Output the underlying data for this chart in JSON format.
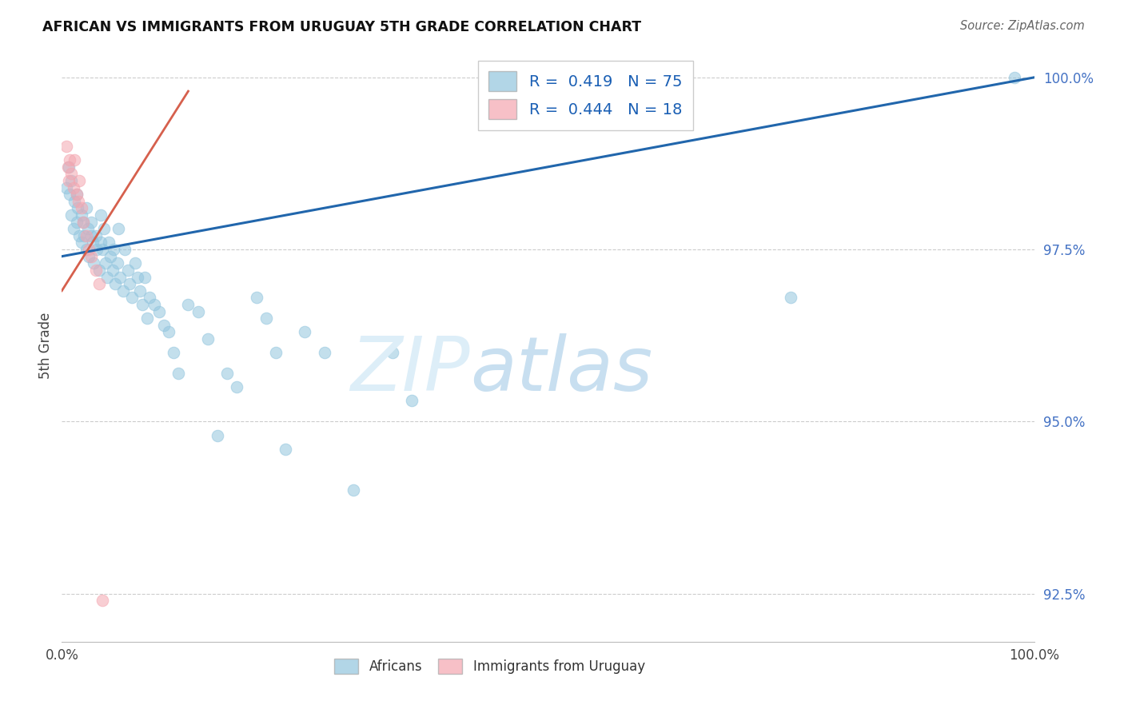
{
  "title": "AFRICAN VS IMMIGRANTS FROM URUGUAY 5TH GRADE CORRELATION CHART",
  "source": "Source: ZipAtlas.com",
  "ylabel": "5th Grade",
  "blue_color": "#92c5de",
  "pink_color": "#f4a6b0",
  "line_blue": "#2166ac",
  "line_pink": "#d6604d",
  "xlim": [
    0.0,
    1.0
  ],
  "ylim": [
    0.918,
    1.004
  ],
  "right_ytick_labels": [
    "92.5%",
    "95.0%",
    "97.5%",
    "100.0%"
  ],
  "right_ytick_positions": [
    0.925,
    0.95,
    0.975,
    1.0
  ],
  "legend_R_blue": "0.419",
  "legend_N_blue": "75",
  "legend_R_pink": "0.444",
  "legend_N_pink": "18",
  "blue_line_x0": 0.0,
  "blue_line_y0": 0.974,
  "blue_line_x1": 1.0,
  "blue_line_y1": 1.0,
  "pink_line_x0": 0.0,
  "pink_line_y0": 0.969,
  "pink_line_x1": 0.13,
  "pink_line_y1": 0.998,
  "africans_x": [
    0.005,
    0.007,
    0.008,
    0.01,
    0.01,
    0.012,
    0.013,
    0.015,
    0.015,
    0.016,
    0.018,
    0.02,
    0.02,
    0.022,
    0.023,
    0.025,
    0.025,
    0.027,
    0.028,
    0.03,
    0.03,
    0.032,
    0.033,
    0.035,
    0.036,
    0.038,
    0.04,
    0.04,
    0.042,
    0.043,
    0.045,
    0.047,
    0.048,
    0.05,
    0.052,
    0.053,
    0.055,
    0.057,
    0.058,
    0.06,
    0.063,
    0.065,
    0.068,
    0.07,
    0.072,
    0.075,
    0.078,
    0.08,
    0.083,
    0.085,
    0.088,
    0.09,
    0.095,
    0.1,
    0.105,
    0.11,
    0.115,
    0.12,
    0.13,
    0.14,
    0.15,
    0.16,
    0.17,
    0.18,
    0.2,
    0.21,
    0.22,
    0.23,
    0.25,
    0.27,
    0.3,
    0.34,
    0.36,
    0.75,
    0.98
  ],
  "africans_y": [
    0.984,
    0.987,
    0.983,
    0.98,
    0.985,
    0.978,
    0.982,
    0.979,
    0.983,
    0.981,
    0.977,
    0.98,
    0.976,
    0.979,
    0.977,
    0.981,
    0.975,
    0.978,
    0.974,
    0.977,
    0.979,
    0.976,
    0.973,
    0.977,
    0.975,
    0.972,
    0.976,
    0.98,
    0.975,
    0.978,
    0.973,
    0.971,
    0.976,
    0.974,
    0.972,
    0.975,
    0.97,
    0.973,
    0.978,
    0.971,
    0.969,
    0.975,
    0.972,
    0.97,
    0.968,
    0.973,
    0.971,
    0.969,
    0.967,
    0.971,
    0.965,
    0.968,
    0.967,
    0.966,
    0.964,
    0.963,
    0.96,
    0.957,
    0.967,
    0.966,
    0.962,
    0.948,
    0.957,
    0.955,
    0.968,
    0.965,
    0.96,
    0.946,
    0.963,
    0.96,
    0.94,
    0.96,
    0.953,
    0.968,
    1.0
  ],
  "uruguay_x": [
    0.005,
    0.006,
    0.007,
    0.008,
    0.01,
    0.012,
    0.013,
    0.015,
    0.017,
    0.018,
    0.02,
    0.022,
    0.025,
    0.028,
    0.03,
    0.035,
    0.038,
    0.042
  ],
  "uruguay_y": [
    0.99,
    0.987,
    0.985,
    0.988,
    0.986,
    0.984,
    0.988,
    0.983,
    0.982,
    0.985,
    0.981,
    0.979,
    0.977,
    0.975,
    0.974,
    0.972,
    0.97,
    0.924
  ]
}
